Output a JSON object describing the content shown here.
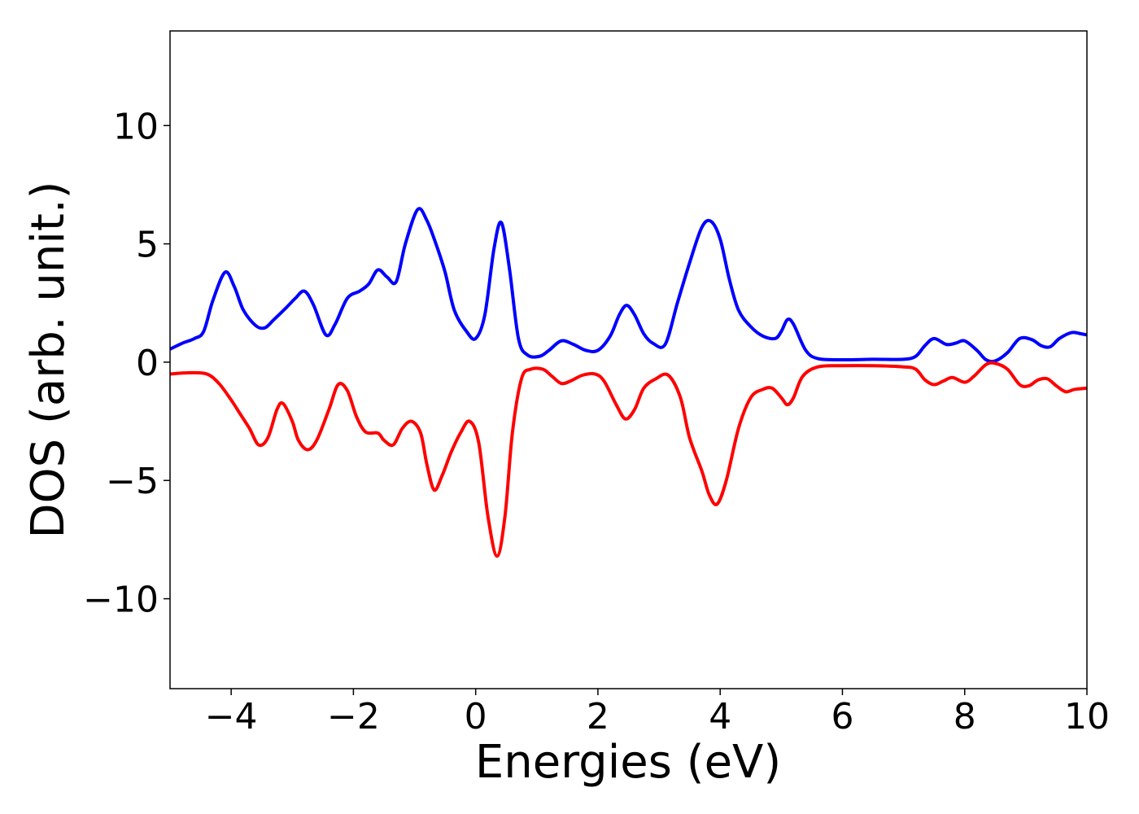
{
  "chart_data": {
    "type": "line",
    "title": "",
    "xlabel": "Energies (eV)",
    "ylabel": "DOS (arb. unit.)",
    "xlim": [
      -5,
      10
    ],
    "ylim": [
      -13.8,
      14
    ],
    "grid": false,
    "legend": "none",
    "x_ticks": [
      -4,
      -2,
      0,
      2,
      4,
      6,
      8,
      10
    ],
    "x_tick_labels": [
      "−4",
      "−2",
      "0",
      "2",
      "4",
      "6",
      "8",
      "10"
    ],
    "y_ticks": [
      -10,
      -5,
      0,
      5,
      10
    ],
    "y_tick_labels": [
      "−10",
      "−5",
      "0",
      "5",
      "10"
    ],
    "series": [
      {
        "color": "#0000ff",
        "points": [
          [
            -5.0,
            0.55
          ],
          [
            -4.8,
            0.8
          ],
          [
            -4.6,
            1.0
          ],
          [
            -4.45,
            1.3
          ],
          [
            -4.3,
            2.6
          ],
          [
            -4.1,
            3.8
          ],
          [
            -3.95,
            3.2
          ],
          [
            -3.8,
            2.2
          ],
          [
            -3.6,
            1.55
          ],
          [
            -3.45,
            1.45
          ],
          [
            -3.3,
            1.8
          ],
          [
            -3.1,
            2.3
          ],
          [
            -2.95,
            2.7
          ],
          [
            -2.8,
            3.0
          ],
          [
            -2.65,
            2.4
          ],
          [
            -2.45,
            1.15
          ],
          [
            -2.3,
            1.6
          ],
          [
            -2.1,
            2.7
          ],
          [
            -1.9,
            3.0
          ],
          [
            -1.75,
            3.3
          ],
          [
            -1.6,
            3.9
          ],
          [
            -1.45,
            3.6
          ],
          [
            -1.3,
            3.4
          ],
          [
            -1.15,
            5.0
          ],
          [
            -0.95,
            6.45
          ],
          [
            -0.8,
            6.0
          ],
          [
            -0.65,
            5.0
          ],
          [
            -0.5,
            3.8
          ],
          [
            -0.35,
            2.2
          ],
          [
            -0.15,
            1.3
          ],
          [
            0.0,
            1.0
          ],
          [
            0.15,
            2.0
          ],
          [
            0.3,
            4.8
          ],
          [
            0.42,
            5.9
          ],
          [
            0.55,
            4.0
          ],
          [
            0.7,
            1.0
          ],
          [
            0.85,
            0.3
          ],
          [
            1.05,
            0.25
          ],
          [
            1.2,
            0.5
          ],
          [
            1.4,
            0.9
          ],
          [
            1.6,
            0.75
          ],
          [
            1.8,
            0.5
          ],
          [
            2.0,
            0.5
          ],
          [
            2.2,
            1.1
          ],
          [
            2.35,
            2.0
          ],
          [
            2.47,
            2.4
          ],
          [
            2.6,
            2.0
          ],
          [
            2.75,
            1.2
          ],
          [
            2.9,
            0.8
          ],
          [
            3.1,
            0.75
          ],
          [
            3.3,
            2.5
          ],
          [
            3.5,
            4.2
          ],
          [
            3.7,
            5.7
          ],
          [
            3.85,
            5.95
          ],
          [
            4.0,
            5.2
          ],
          [
            4.15,
            3.5
          ],
          [
            4.3,
            2.2
          ],
          [
            4.5,
            1.5
          ],
          [
            4.7,
            1.1
          ],
          [
            4.9,
            1.0
          ],
          [
            5.0,
            1.3
          ],
          [
            5.1,
            1.8
          ],
          [
            5.2,
            1.6
          ],
          [
            5.4,
            0.5
          ],
          [
            5.6,
            0.15
          ],
          [
            6.0,
            0.1
          ],
          [
            6.5,
            0.12
          ],
          [
            7.0,
            0.12
          ],
          [
            7.2,
            0.25
          ],
          [
            7.35,
            0.7
          ],
          [
            7.5,
            1.0
          ],
          [
            7.7,
            0.75
          ],
          [
            7.85,
            0.8
          ],
          [
            8.0,
            0.9
          ],
          [
            8.2,
            0.5
          ],
          [
            8.35,
            0.1
          ],
          [
            8.5,
            0.05
          ],
          [
            8.7,
            0.4
          ],
          [
            8.9,
            1.0
          ],
          [
            9.1,
            0.95
          ],
          [
            9.25,
            0.7
          ],
          [
            9.4,
            0.65
          ],
          [
            9.55,
            1.0
          ],
          [
            9.75,
            1.25
          ],
          [
            9.9,
            1.2
          ],
          [
            10.0,
            1.15
          ]
        ]
      },
      {
        "color": "#ff0000",
        "points": [
          [
            -5.0,
            -0.5
          ],
          [
            -4.7,
            -0.45
          ],
          [
            -4.4,
            -0.5
          ],
          [
            -4.2,
            -0.9
          ],
          [
            -4.0,
            -1.6
          ],
          [
            -3.85,
            -2.2
          ],
          [
            -3.7,
            -2.8
          ],
          [
            -3.55,
            -3.5
          ],
          [
            -3.4,
            -3.2
          ],
          [
            -3.25,
            -2.0
          ],
          [
            -3.15,
            -1.75
          ],
          [
            -3.0,
            -2.5
          ],
          [
            -2.9,
            -3.3
          ],
          [
            -2.75,
            -3.7
          ],
          [
            -2.6,
            -3.3
          ],
          [
            -2.4,
            -2.0
          ],
          [
            -2.25,
            -0.95
          ],
          [
            -2.1,
            -1.2
          ],
          [
            -1.95,
            -2.3
          ],
          [
            -1.8,
            -2.95
          ],
          [
            -1.6,
            -3.0
          ],
          [
            -1.5,
            -3.3
          ],
          [
            -1.35,
            -3.5
          ],
          [
            -1.2,
            -2.8
          ],
          [
            -1.05,
            -2.5
          ],
          [
            -0.9,
            -3.0
          ],
          [
            -0.8,
            -4.3
          ],
          [
            -0.68,
            -5.4
          ],
          [
            -0.55,
            -4.8
          ],
          [
            -0.4,
            -3.8
          ],
          [
            -0.25,
            -3.0
          ],
          [
            -0.1,
            -2.5
          ],
          [
            0.05,
            -3.4
          ],
          [
            0.2,
            -6.5
          ],
          [
            0.35,
            -8.2
          ],
          [
            0.48,
            -6.5
          ],
          [
            0.6,
            -3.0
          ],
          [
            0.75,
            -0.7
          ],
          [
            0.9,
            -0.3
          ],
          [
            1.1,
            -0.3
          ],
          [
            1.25,
            -0.6
          ],
          [
            1.4,
            -0.9
          ],
          [
            1.55,
            -0.8
          ],
          [
            1.75,
            -0.55
          ],
          [
            1.95,
            -0.5
          ],
          [
            2.1,
            -0.8
          ],
          [
            2.3,
            -1.8
          ],
          [
            2.45,
            -2.4
          ],
          [
            2.6,
            -2.0
          ],
          [
            2.75,
            -1.1
          ],
          [
            2.95,
            -0.7
          ],
          [
            3.15,
            -0.55
          ],
          [
            3.35,
            -1.5
          ],
          [
            3.5,
            -3.2
          ],
          [
            3.7,
            -4.6
          ],
          [
            3.82,
            -5.6
          ],
          [
            3.95,
            -6.0
          ],
          [
            4.1,
            -5.0
          ],
          [
            4.3,
            -2.8
          ],
          [
            4.5,
            -1.5
          ],
          [
            4.7,
            -1.15
          ],
          [
            4.85,
            -1.1
          ],
          [
            5.0,
            -1.5
          ],
          [
            5.1,
            -1.8
          ],
          [
            5.2,
            -1.5
          ],
          [
            5.35,
            -0.6
          ],
          [
            5.6,
            -0.2
          ],
          [
            6.0,
            -0.15
          ],
          [
            6.5,
            -0.15
          ],
          [
            7.0,
            -0.2
          ],
          [
            7.2,
            -0.3
          ],
          [
            7.35,
            -0.75
          ],
          [
            7.5,
            -0.95
          ],
          [
            7.65,
            -0.8
          ],
          [
            7.8,
            -0.65
          ],
          [
            8.0,
            -0.85
          ],
          [
            8.15,
            -0.6
          ],
          [
            8.35,
            -0.1
          ],
          [
            8.5,
            -0.05
          ],
          [
            8.7,
            -0.3
          ],
          [
            8.9,
            -0.95
          ],
          [
            9.05,
            -1.0
          ],
          [
            9.2,
            -0.75
          ],
          [
            9.35,
            -0.7
          ],
          [
            9.5,
            -1.0
          ],
          [
            9.65,
            -1.25
          ],
          [
            9.8,
            -1.15
          ],
          [
            10.0,
            -1.1
          ]
        ]
      }
    ]
  }
}
